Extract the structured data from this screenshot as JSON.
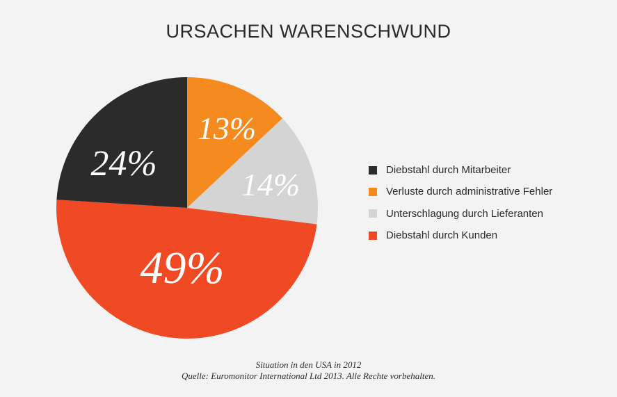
{
  "chart_data": {
    "type": "pie",
    "title": "URSACHEN WARENSCHWUND",
    "categories": [
      "Verluste durch administrative Fehler",
      "Unterschlagung durch Lieferanten",
      "Diebstahl durch Kunden",
      "Diebstahl durch Mitarbeiter"
    ],
    "values": [
      13,
      14,
      49,
      24
    ],
    "data_labels": [
      "13%",
      "14%",
      "49%",
      "24%"
    ],
    "colors": [
      "#f58a1f",
      "#d4d4d4",
      "#f04a24",
      "#2b2b2b"
    ],
    "start_angle": "12 o'clock",
    "direction": "clockwise",
    "legend_position": "right"
  },
  "legend": {
    "items": [
      {
        "label": "Diebstahl durch Mitarbeiter",
        "color": "#2b2b2b"
      },
      {
        "label": "Verluste durch administrative Fehler",
        "color": "#f58a1f"
      },
      {
        "label": "Unterschlagung durch Lieferanten",
        "color": "#d4d4d4"
      },
      {
        "label": "Diebstahl durch Kunden",
        "color": "#f04a24"
      }
    ]
  },
  "footer": {
    "line1": "Situation in den USA in 2012",
    "line2": "Quelle: Euromonitor International Ltd 2013. Alle Rechte vorbehalten."
  }
}
